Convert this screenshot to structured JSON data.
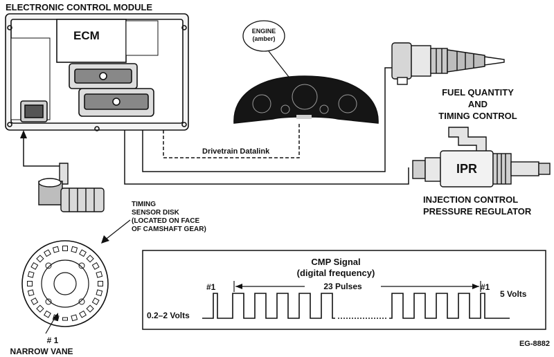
{
  "labels": {
    "ecm_module": "ELECTRONIC CONTROL MODULE",
    "ecm": "ECM",
    "engine_lamp_line1": "ENGINE",
    "engine_lamp_line2": "(amber)",
    "datalink": "Drivetrain  Datalink",
    "fuel_line1": "FUEL QUANTITY",
    "fuel_line2": "AND",
    "fuel_line3": "TIMING CONTROL",
    "ipr": "IPR",
    "ipr_line1": "INJECTION CONTROL",
    "ipr_line2": "PRESSURE REGULATOR",
    "disk_line1": "TIMING",
    "disk_line2": "SENSOR DISK",
    "disk_line3": "(LOCATED ON FACE",
    "disk_line4": "OF CAMSHAFT GEAR)",
    "vane_line1": "# 1",
    "vane_line2": "NARROW VANE",
    "figure_id": "EG-8882"
  },
  "cmp_signal": {
    "title": "CMP Signal",
    "subtitle": "(digital frequency)",
    "first_pulse": "#1",
    "last_pulse": "#1",
    "pulses": "23 Pulses",
    "high_level": "5 Volts",
    "low_level": "0.2–2 Volts"
  }
}
